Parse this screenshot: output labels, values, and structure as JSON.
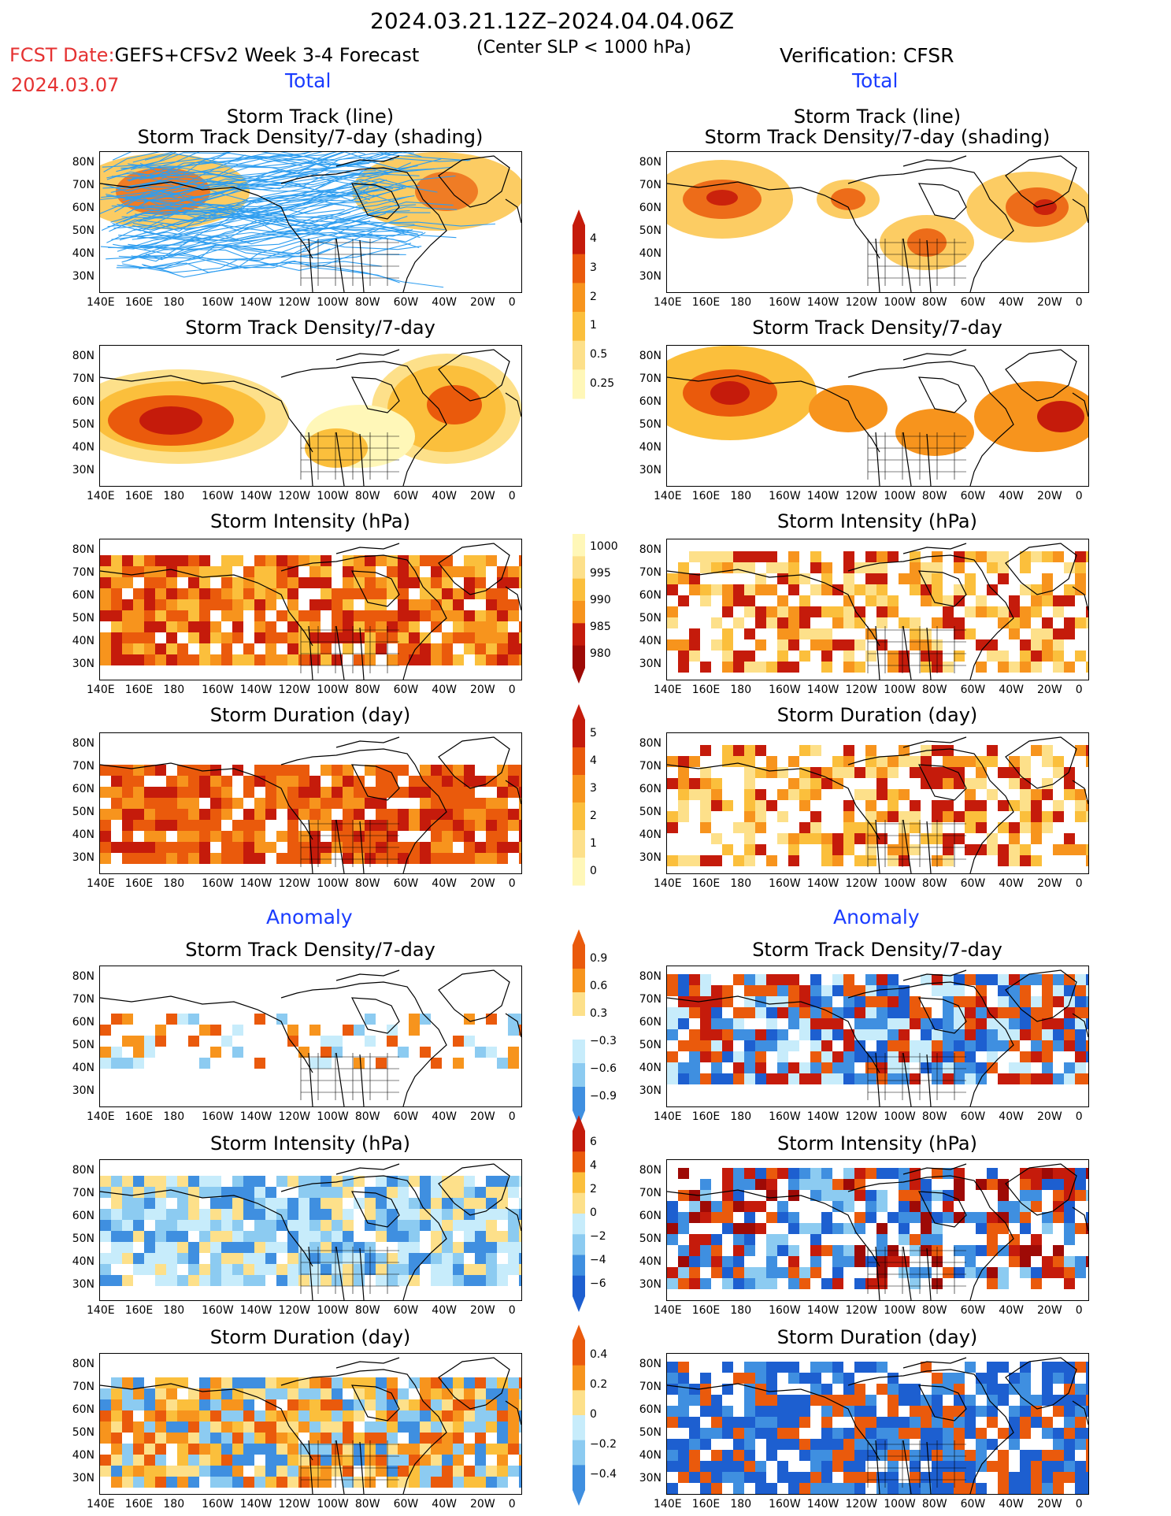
{
  "header": {
    "dates": "2024.03.21.12Z–2024.04.04.06Z",
    "subtitle": "(Center SLP < 1000 hPa)",
    "fcst_prefix": "FCST Date:",
    "fcst_model": "GEFS+CFSv2 Week 3-4 Forecast",
    "fcst_date": "2024.03.07",
    "verification": "Verification: CFSR"
  },
  "sections": {
    "total_left": "Total",
    "total_right": "Total",
    "anomaly_left": "Anomaly",
    "anomaly_right": "Anomaly"
  },
  "titles": {
    "track_line": "Storm Track (line)",
    "track_density_shading": "Storm Track Density/7-day (shading)",
    "track_density": "Storm Track Density/7-day",
    "intensity": "Storm Intensity (hPa)",
    "duration": "Storm Duration (day)"
  },
  "axes": {
    "lat_labels": [
      "80N",
      "70N",
      "60N",
      "50N",
      "40N",
      "30N"
    ],
    "lon_labels": [
      "140E",
      "160E",
      "180",
      "160W",
      "140W",
      "120W",
      "100W",
      "80W",
      "60W",
      "40W",
      "20W",
      "0"
    ]
  },
  "colorbars": {
    "density": [
      "4",
      "3",
      "2",
      "1",
      "0.5",
      "0.25"
    ],
    "intensity": [
      "1000",
      "995",
      "990",
      "985",
      "980"
    ],
    "duration": [
      "5",
      "4",
      "3",
      "2",
      "1",
      "0"
    ],
    "density_anom": [
      "0.9",
      "0.6",
      "0.3",
      "−0.3",
      "−0.6",
      "−0.9"
    ],
    "intensity_anom": [
      "6",
      "4",
      "2",
      "0",
      "−2",
      "−4",
      "−6"
    ],
    "duration_anom": [
      "0.4",
      "0.2",
      "0",
      "−0.2",
      "−0.4"
    ]
  },
  "colors": {
    "warm1": "#fff7b8",
    "warm2": "#fde08a",
    "warm3": "#fbbf3c",
    "warm4": "#f7941d",
    "warm5": "#ea5a0c",
    "warm6": "#c51b0b",
    "warm7": "#9e0a06",
    "cool1": "#c7ecfb",
    "cool2": "#8ccbf1",
    "cool3": "#3f8fe0",
    "cool4": "#1d5fd0",
    "track_line": "#2f9ef0",
    "title_blue": "#1a3cff",
    "fcst_red": "#e53232"
  }
}
